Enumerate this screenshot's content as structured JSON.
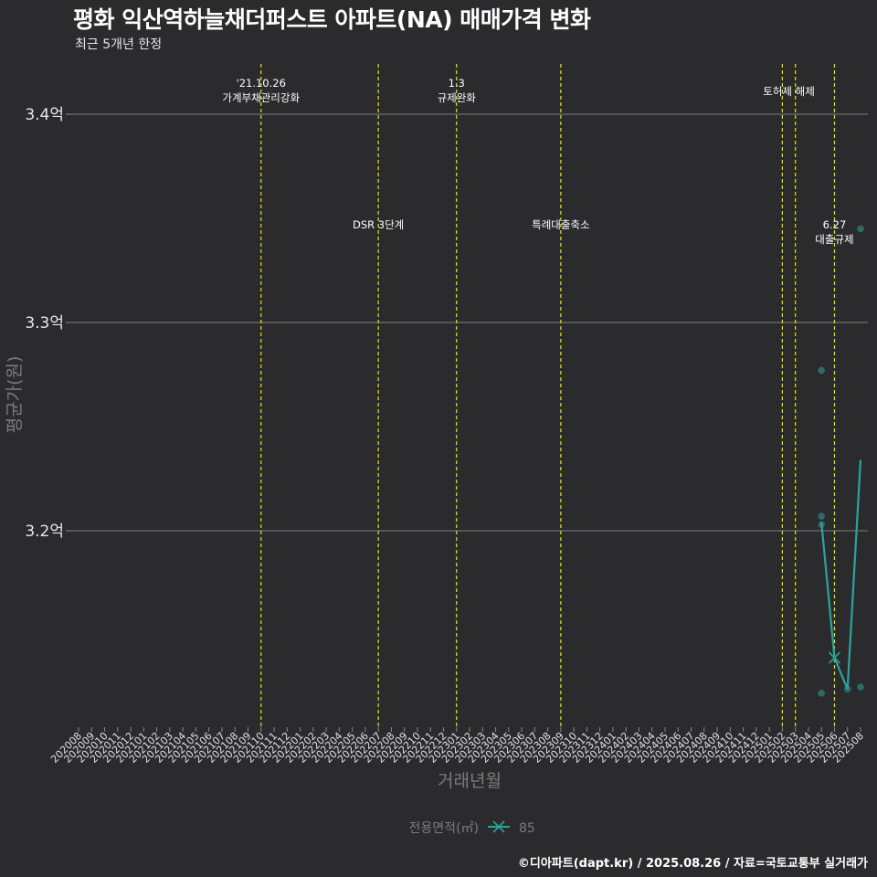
{
  "title": "평화 익산역하늘채더퍼스트 아파트(NA) 매매가격 변화",
  "subtitle": "최근 5개년 한정",
  "caption": "©디아파트(dapt.kr) / 2025.08.26 / 자료=국토교통부 실거래가",
  "chart_data": {
    "type": "line",
    "xlabel": "거래년월",
    "ylabel": "평균가(원)",
    "categories": [
      "202008",
      "202009",
      "202010",
      "202011",
      "202012",
      "202101",
      "202102",
      "202103",
      "202104",
      "202105",
      "202106",
      "202107",
      "202108",
      "202109",
      "202110",
      "202111",
      "202112",
      "202201",
      "202202",
      "202203",
      "202204",
      "202205",
      "202206",
      "202207",
      "202208",
      "202209",
      "202210",
      "202211",
      "202212",
      "202301",
      "202302",
      "202303",
      "202304",
      "202305",
      "202306",
      "202307",
      "202308",
      "202309",
      "202310",
      "202311",
      "202312",
      "202401",
      "202402",
      "202403",
      "202404",
      "202405",
      "202406",
      "202407",
      "202408",
      "202409",
      "202410",
      "202411",
      "202412",
      "202501",
      "202502",
      "202503",
      "202504",
      "202505",
      "202506",
      "202507",
      "202508"
    ],
    "ylim": [
      3.1,
      3.43
    ],
    "yticks": [
      3.2,
      3.3,
      3.4
    ],
    "ytick_labels": [
      "3.2억",
      "3.3억",
      "3.4억"
    ],
    "grid": "horizontal",
    "legend_title": "전용면적(㎡)",
    "legend_position": "bottom",
    "series": [
      {
        "name": "85",
        "color": "#2ca39b",
        "line": [
          {
            "x": "202505",
            "y": 3.204
          },
          {
            "x": "202506",
            "y": 3.139
          },
          {
            "x": "202507",
            "y": 3.124
          },
          {
            "x": "202508",
            "y": 3.234
          }
        ],
        "points": [
          {
            "x": "202505",
            "y": 3.277
          },
          {
            "x": "202505",
            "y": 3.207
          },
          {
            "x": "202505",
            "y": 3.203
          },
          {
            "x": "202505",
            "y": 3.122
          },
          {
            "x": "202507",
            "y": 3.124
          },
          {
            "x": "202508",
            "y": 3.345
          },
          {
            "x": "202508",
            "y": 3.125
          }
        ],
        "cross_marker": {
          "x": "202506",
          "y": 3.139
        }
      }
    ],
    "events": [
      {
        "x": "202110",
        "label": [
          "'21.10.26",
          "가계부채관리강화"
        ],
        "level": "top"
      },
      {
        "x": "202207",
        "label": [
          "DSR 3단계"
        ],
        "level": "mid"
      },
      {
        "x": "202301",
        "label": [
          "1.3",
          "규제완화"
        ],
        "level": "top"
      },
      {
        "x": "202309",
        "label": [
          "특례대출축소"
        ],
        "level": "mid"
      },
      {
        "x": "202502",
        "label": [],
        "level": "none"
      },
      {
        "x": "202503",
        "label": [
          "토허제 해제"
        ],
        "level": "top-between"
      },
      {
        "x": "202506",
        "label": [
          "6.27",
          "대출규제"
        ],
        "level": "mid"
      }
    ]
  }
}
